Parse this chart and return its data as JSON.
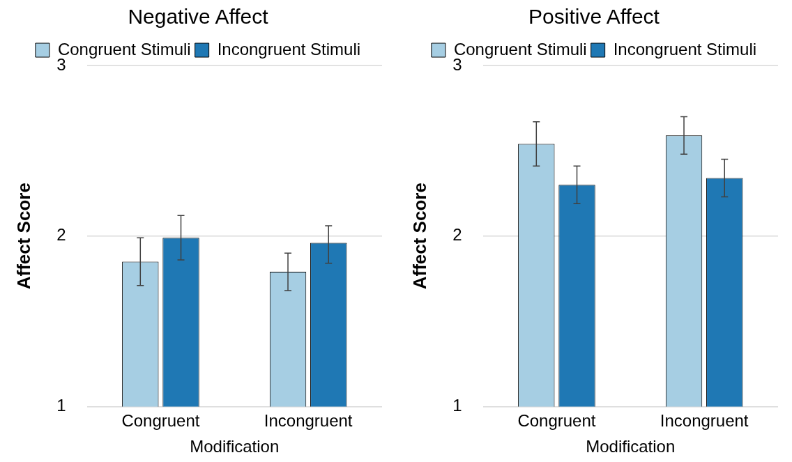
{
  "chart_data": [
    {
      "type": "bar",
      "title": "Negative Affect",
      "xlabel": "Modification",
      "ylabel": "Affect Score",
      "categories": [
        "Congruent",
        "Incongruent"
      ],
      "series": [
        {
          "name": "Congruent Stimuli",
          "color": "#a6cee3",
          "values": [
            1.85,
            1.79
          ],
          "errors": [
            [
              1.71,
              1.99
            ],
            [
              1.68,
              1.9
            ]
          ]
        },
        {
          "name": "Incongruent Stimuli",
          "color": "#1f78b4",
          "values": [
            1.99,
            1.96
          ],
          "errors": [
            [
              1.86,
              2.12
            ],
            [
              1.84,
              2.06
            ]
          ]
        }
      ],
      "ylim": [
        1,
        3
      ],
      "yticks": [
        1,
        2,
        3
      ],
      "grid": "y",
      "legend": "top"
    },
    {
      "type": "bar",
      "title": "Positive Affect",
      "xlabel": "Modification",
      "ylabel": "Affect Score",
      "categories": [
        "Congruent",
        "Incongruent"
      ],
      "series": [
        {
          "name": "Congruent Stimuli",
          "color": "#a6cee3",
          "values": [
            2.54,
            2.59
          ],
          "errors": [
            [
              2.41,
              2.67
            ],
            [
              2.48,
              2.7
            ]
          ]
        },
        {
          "name": "Incongruent Stimuli",
          "color": "#1f78b4",
          "values": [
            2.3,
            2.34
          ],
          "errors": [
            [
              2.19,
              2.41
            ],
            [
              2.23,
              2.45
            ]
          ]
        }
      ],
      "ylim": [
        1,
        3
      ],
      "yticks": [
        1,
        2,
        3
      ],
      "grid": "y",
      "legend": "top"
    }
  ]
}
